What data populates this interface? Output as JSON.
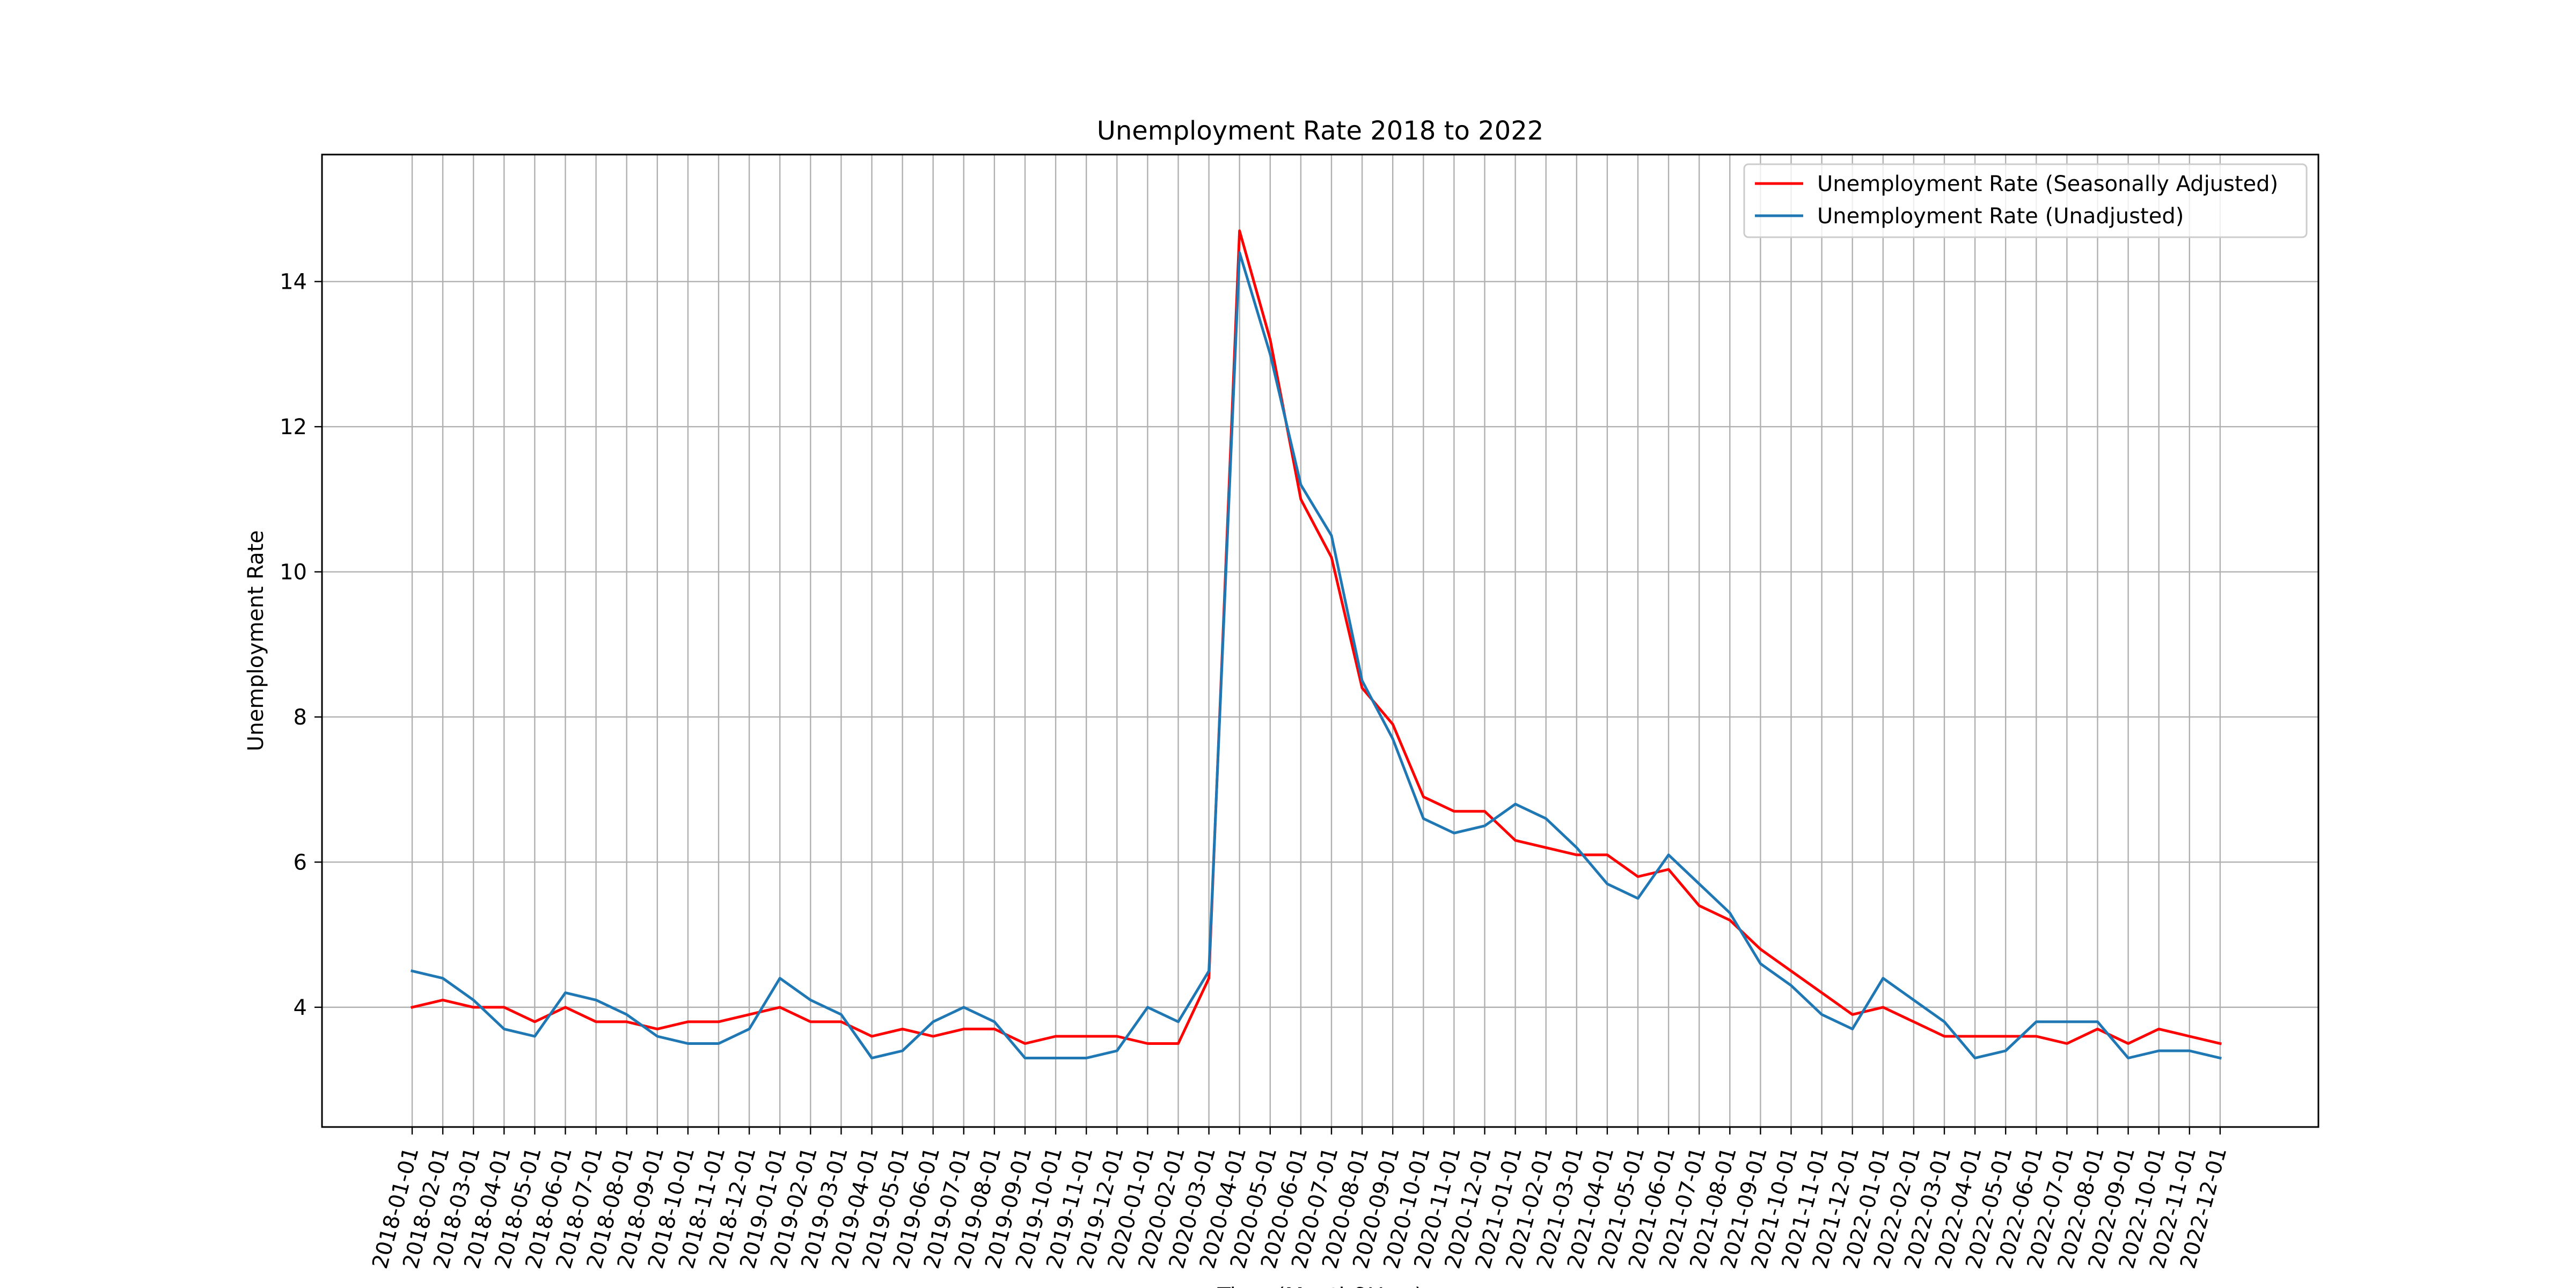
{
  "chart_data": {
    "type": "line",
    "title": "Unemployment Rate 2018 to 2022",
    "xlabel": "Time (Month&Year)",
    "ylabel": "Unemployment Rate",
    "ylim": [
      2.35,
      15.75
    ],
    "y_ticks": [
      4,
      6,
      8,
      10,
      12,
      14
    ],
    "grid": true,
    "legend_position": "top-right",
    "x": [
      "2018-01-01",
      "2018-02-01",
      "2018-03-01",
      "2018-04-01",
      "2018-05-01",
      "2018-06-01",
      "2018-07-01",
      "2018-08-01",
      "2018-09-01",
      "2018-10-01",
      "2018-11-01",
      "2018-12-01",
      "2019-01-01",
      "2019-02-01",
      "2019-03-01",
      "2019-04-01",
      "2019-05-01",
      "2019-06-01",
      "2019-07-01",
      "2019-08-01",
      "2019-09-01",
      "2019-10-01",
      "2019-11-01",
      "2019-12-01",
      "2020-01-01",
      "2020-02-01",
      "2020-03-01",
      "2020-04-01",
      "2020-05-01",
      "2020-06-01",
      "2020-07-01",
      "2020-08-01",
      "2020-09-01",
      "2020-10-01",
      "2020-11-01",
      "2020-12-01",
      "2021-01-01",
      "2021-02-01",
      "2021-03-01",
      "2021-04-01",
      "2021-05-01",
      "2021-06-01",
      "2021-07-01",
      "2021-08-01",
      "2021-09-01",
      "2021-10-01",
      "2021-11-01",
      "2021-12-01",
      "2022-01-01",
      "2022-02-01",
      "2022-03-01",
      "2022-04-01",
      "2022-05-01",
      "2022-06-01",
      "2022-07-01",
      "2022-08-01",
      "2022-09-01",
      "2022-10-01",
      "2022-11-01",
      "2022-12-01"
    ],
    "series": [
      {
        "name": "Unemployment Rate (Seasonally Adjusted)",
        "color": "#ff0000",
        "values": [
          4.0,
          4.1,
          4.0,
          4.0,
          3.8,
          4.0,
          3.8,
          3.8,
          3.7,
          3.8,
          3.8,
          3.9,
          4.0,
          3.8,
          3.8,
          3.6,
          3.7,
          3.6,
          3.7,
          3.7,
          3.5,
          3.6,
          3.6,
          3.6,
          3.5,
          3.5,
          4.4,
          14.7,
          13.2,
          11.0,
          10.2,
          8.4,
          7.9,
          6.9,
          6.7,
          6.7,
          6.3,
          6.2,
          6.1,
          6.1,
          5.8,
          5.9,
          5.4,
          5.2,
          4.8,
          4.5,
          4.2,
          3.9,
          4.0,
          3.8,
          3.6,
          3.6,
          3.6,
          3.6,
          3.5,
          3.7,
          3.5,
          3.7,
          3.6,
          3.5
        ]
      },
      {
        "name": "Unemployment Rate (Unadjusted)",
        "color": "#1f77b4",
        "values": [
          4.5,
          4.4,
          4.1,
          3.7,
          3.6,
          4.2,
          4.1,
          3.9,
          3.6,
          3.5,
          3.5,
          3.7,
          4.4,
          4.1,
          3.9,
          3.3,
          3.4,
          3.8,
          4.0,
          3.8,
          3.3,
          3.3,
          3.3,
          3.4,
          4.0,
          3.8,
          4.5,
          14.4,
          13.0,
          11.2,
          10.5,
          8.5,
          7.7,
          6.6,
          6.4,
          6.5,
          6.8,
          6.6,
          6.2,
          5.7,
          5.5,
          6.1,
          5.7,
          5.3,
          4.6,
          4.3,
          3.9,
          3.7,
          4.4,
          4.1,
          3.8,
          3.3,
          3.4,
          3.8,
          3.8,
          3.8,
          3.3,
          3.4,
          3.4,
          3.3
        ]
      }
    ]
  }
}
